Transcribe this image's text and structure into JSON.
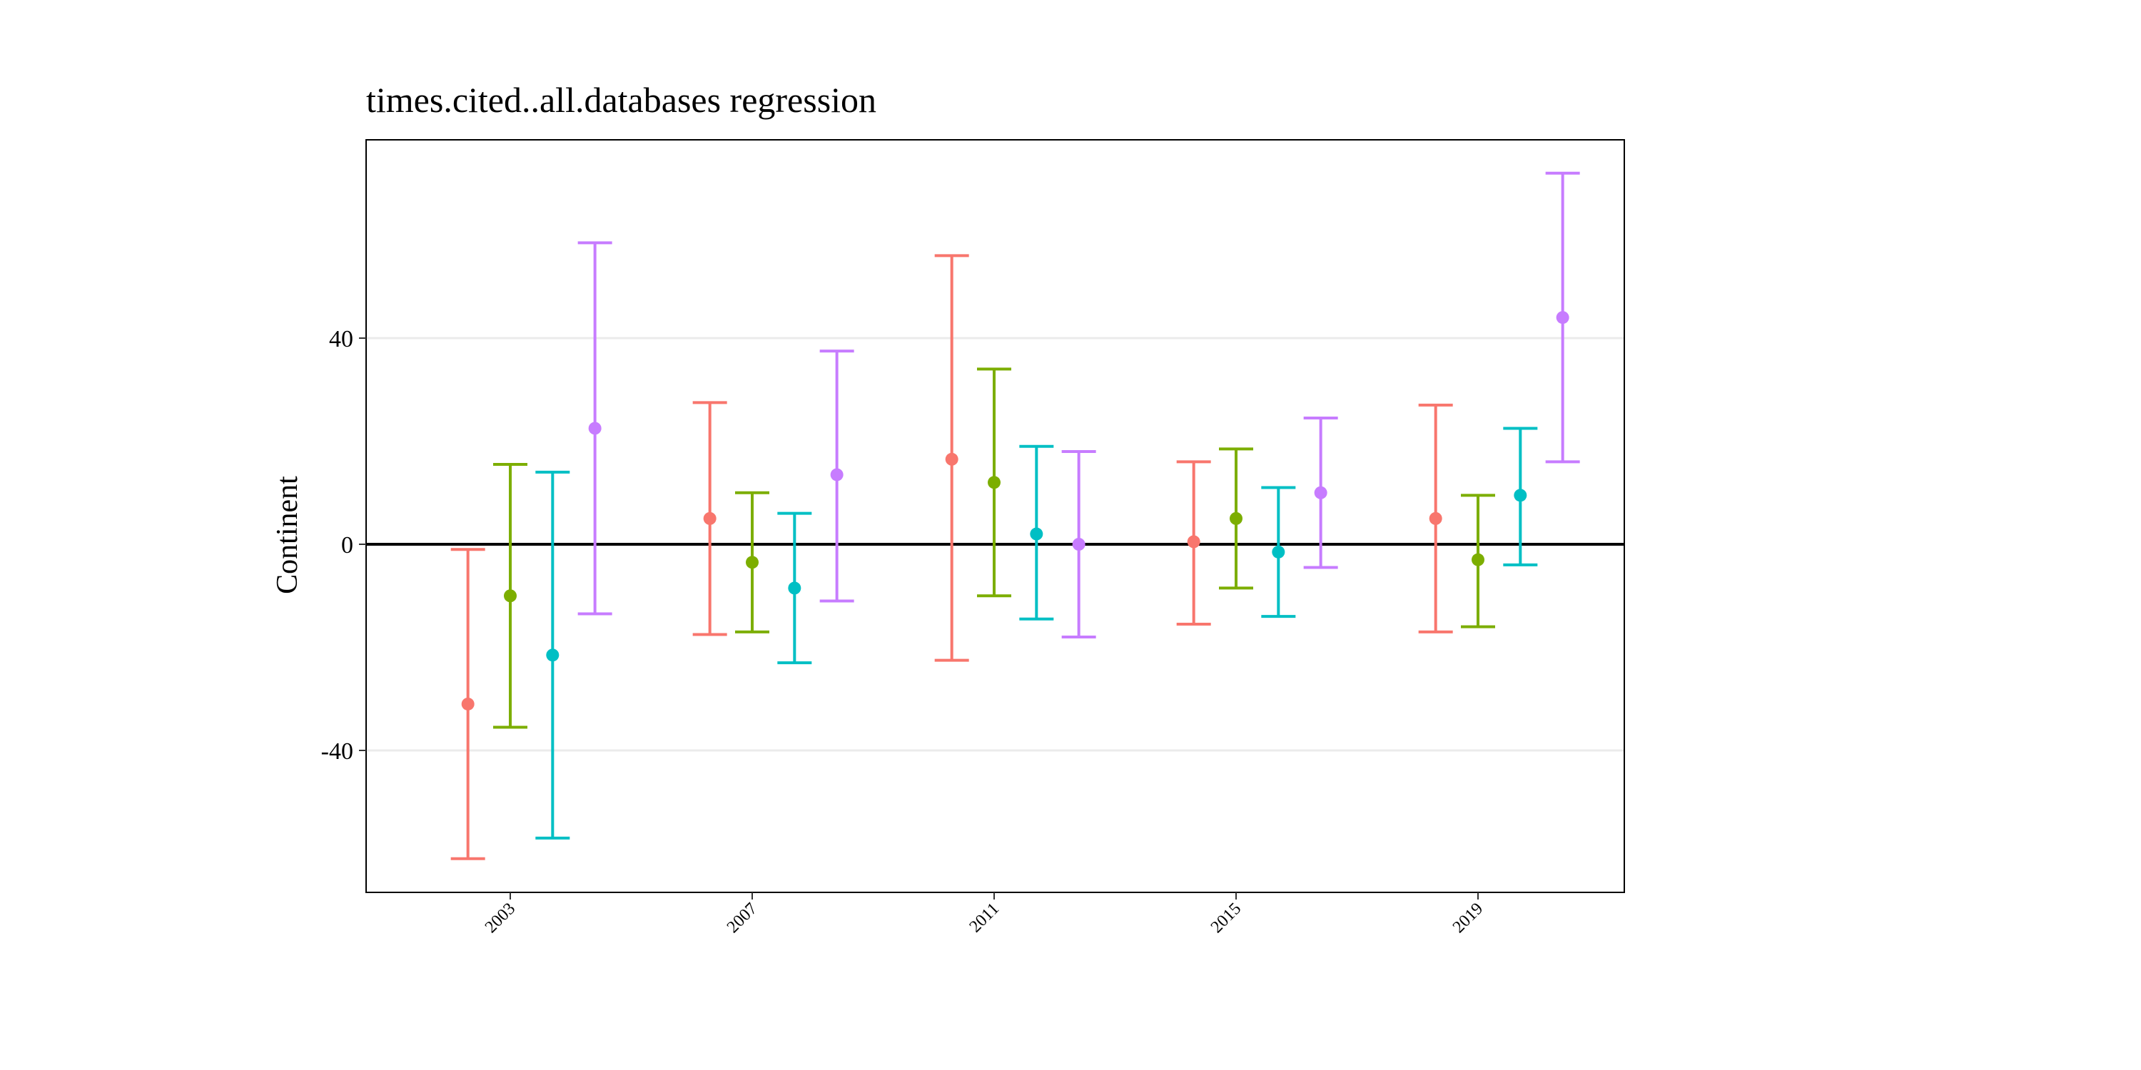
{
  "chart_data": {
    "type": "scatter",
    "title": "times.cited..all.databases regression",
    "xlabel": "",
    "ylabel": "Continent",
    "x_ticks": [
      "2003",
      "2007",
      "2011",
      "2015",
      "2019"
    ],
    "y_ticks": [
      "40",
      "0",
      "-40"
    ],
    "ylim": [
      -68,
      78
    ],
    "reference_line_y": 0,
    "grid": "horizontal major",
    "legend": "none",
    "series": [
      {
        "color": "#F8766D",
        "points": [
          {
            "x": 2002.3,
            "estimate": -31,
            "lower": -61,
            "upper": -1
          },
          {
            "x": 2006.3,
            "estimate": 5,
            "lower": -17.5,
            "upper": 27.5
          },
          {
            "x": 2010.3,
            "estimate": 16.5,
            "lower": -22.5,
            "upper": 56
          },
          {
            "x": 2014.3,
            "estimate": 0.5,
            "lower": -15.5,
            "upper": 16
          },
          {
            "x": 2018.3,
            "estimate": 5,
            "lower": -17,
            "upper": 27
          }
        ]
      },
      {
        "color": "#7CAE00",
        "points": [
          {
            "x": 2003.0,
            "estimate": -10,
            "lower": -35.5,
            "upper": 15.5
          },
          {
            "x": 2007.0,
            "estimate": -3.5,
            "lower": -17,
            "upper": 10
          },
          {
            "x": 2011.0,
            "estimate": 12,
            "lower": -10,
            "upper": 34
          },
          {
            "x": 2015.0,
            "estimate": 5,
            "lower": -8.5,
            "upper": 18.5
          },
          {
            "x": 2019.0,
            "estimate": -3,
            "lower": -16,
            "upper": 9.5
          }
        ]
      },
      {
        "color": "#00BFC4",
        "points": [
          {
            "x": 2003.7,
            "estimate": -21.5,
            "lower": -57,
            "upper": 14
          },
          {
            "x": 2007.7,
            "estimate": -8.5,
            "lower": -23,
            "upper": 6
          },
          {
            "x": 2011.7,
            "estimate": 2,
            "lower": -14.5,
            "upper": 19
          },
          {
            "x": 2015.7,
            "estimate": -1.5,
            "lower": -14,
            "upper": 11
          },
          {
            "x": 2019.7,
            "estimate": 9.5,
            "lower": -4,
            "upper": 22.5
          }
        ]
      },
      {
        "color": "#C77CFF",
        "points": [
          {
            "x": 2004.4,
            "estimate": 22.5,
            "lower": -13.5,
            "upper": 58.5
          },
          {
            "x": 2008.4,
            "estimate": 13.5,
            "lower": -11,
            "upper": 37.5
          },
          {
            "x": 2012.4,
            "estimate": 0,
            "lower": -18,
            "upper": 18
          },
          {
            "x": 2016.4,
            "estimate": 10,
            "lower": -4.5,
            "upper": 24.5
          },
          {
            "x": 2020.4,
            "estimate": 44,
            "lower": 16,
            "upper": 72
          }
        ]
      }
    ]
  }
}
